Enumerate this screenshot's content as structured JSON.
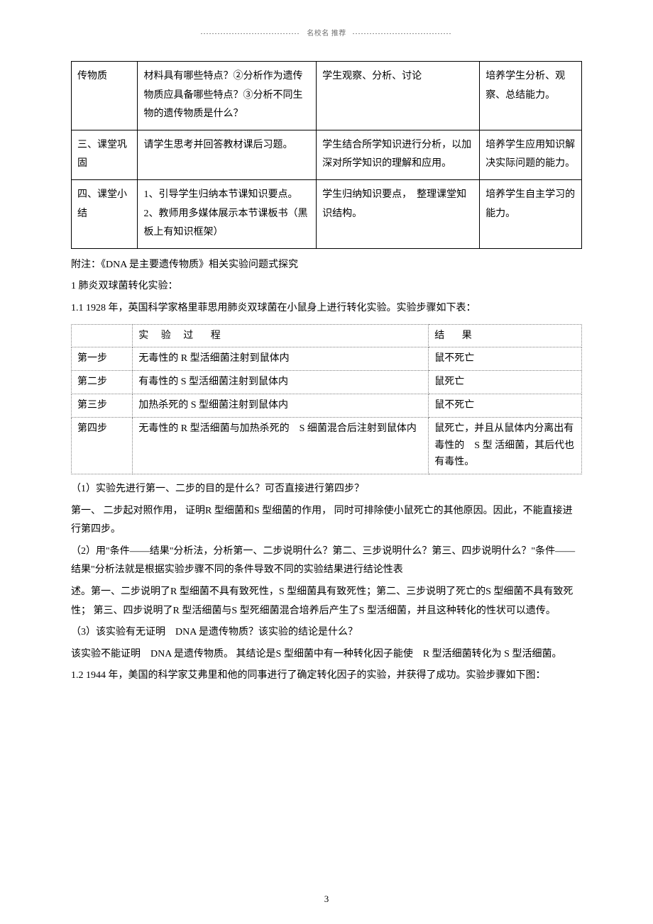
{
  "header": {
    "label": "名校名  推荐"
  },
  "mainTable": {
    "rows": [
      {
        "c1": "传物质",
        "c2": "材料具有哪些特点？②分析作为遗传物质应具备哪些特点？③分析不同生物的遗传物质是什么？",
        "c3": "学生观察、分析、讨论",
        "c4": "培养学生分析、观察、总结能力。"
      },
      {
        "c1": "三、课堂巩固",
        "c2": "请学生思考并回答教材课后习题。",
        "c3": "学生结合所学知识进行分析，以加深对所学知识的理解和应用。",
        "c4": "培养学生应用知识解决实际问题的能力。"
      },
      {
        "c1": "四、课堂小结",
        "c2_items": [
          "1、引导学生归纳本节课知识要点。",
          "2、教师用多媒体展示本节课板书（黑板上有知识框架）"
        ],
        "c3": "学生归纳知识要点，　整理课堂知识结构。",
        "c4": "培养学生自主学习的能力。"
      }
    ]
  },
  "paras1": [
    "附注：《DNA 是主要遗传物质》相关实验问题式探究",
    "1 肺炎双球菌转化实验：",
    "1.1 1928 年，英国科学家格里菲思用肺炎双球菌在小鼠身上进行转化实验。实验步骤如下表："
  ],
  "expTable": {
    "head": {
      "c2a": "实",
      "c2b": "验",
      "c2c": "过",
      "c2d": "程",
      "c3a": "结",
      "c3b": "果"
    },
    "rows": [
      {
        "c1": "第一步",
        "c2": "无毒性的 R 型活细菌注射到鼠体内",
        "c3": "鼠不死亡"
      },
      {
        "c1": "第二步",
        "c2": "有毒性的 S 型活细菌注射到鼠体内",
        "c3": "鼠死亡"
      },
      {
        "c1": "第三步",
        "c2": "加热杀死的 S 型细菌注射到鼠体内",
        "c3": "鼠不死亡"
      },
      {
        "c1": "第四步",
        "c2": "无毒性的 R 型活细菌与加热杀死的　S 细菌混合后注射到鼠体内",
        "c3": "鼠死亡，并且从鼠体内分离出有毒性的　S 型 活细菌，其后代也有毒性。"
      }
    ]
  },
  "paras2": [
    "（1）实验先进行第一、二步的目的是什么？可否直接进行第四步？",
    "第一、 二步起对照作用， 证明R 型细菌和S 型细菌的作用， 同时可排除使小鼠死亡的其他原因。因此，不能直接进行第四步。",
    "（2）用\"条件——结果\"分析法，分析第一、二步说明什么？第二、三步说明什么？第三、四步说明什么？\"条件——结果\"分析法就是根据实验步骤不同的条件导致不同的实验结果进行结论性表",
    "述。第一、二步说明了R 型细菌不具有致死性，S 型细菌具有致死性；第二、三步说明了死亡的S 型细菌不具有致死性； 第三、四步说明了R 型活细菌与S 型死细菌混合培养后产生了S 型活细菌，并且这种转化的性状可以遗传。",
    "（3）该实验有无证明　DNA 是遗传物质？该实验的结论是什么？",
    "该实验不能证明　DNA 是遗传物质。 其结论是S 型细菌中有一种转化因子能使　R 型活细菌转化为 S 型活细菌。",
    "1.2 1944 年，美国的科学家艾弗里和他的同事进行了确定转化因子的实验，并获得了成功。实验步骤如下图："
  ],
  "pageNumber": "3"
}
